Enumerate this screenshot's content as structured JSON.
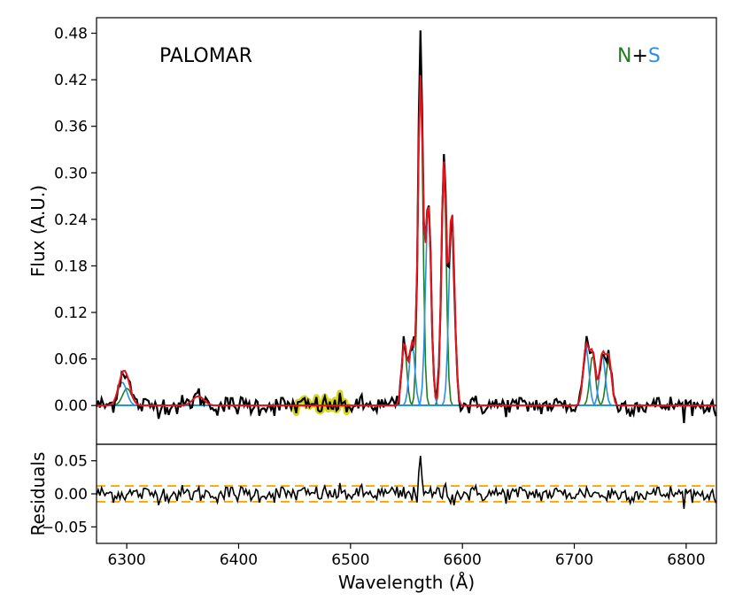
{
  "chart_data": [
    {
      "type": "line",
      "panel": "spectrum",
      "title": "",
      "xlabel": "",
      "ylabel": "Flux (A.U.)",
      "xlim": [
        6273,
        6827
      ],
      "ylim": [
        -0.05,
        0.5
      ],
      "xticks": [
        6300,
        6400,
        6500,
        6600,
        6700,
        6800
      ],
      "yticks": [
        0.0,
        0.06,
        0.12,
        0.18,
        0.24,
        0.3,
        0.36,
        0.42,
        0.48
      ],
      "ytick_labels": [
        "0.00",
        "0.06",
        "0.12",
        "0.18",
        "0.24",
        "0.30",
        "0.36",
        "0.42",
        "0.48"
      ],
      "annotations": {
        "label": "PALOMAR",
        "n_text": "N",
        "plus_text": "+",
        "s_text": "S"
      },
      "components": {
        "north": [
          {
            "center": 6548.0,
            "amp": 0.08,
            "sigma": 2.3
          },
          {
            "center": 6562.5,
            "amp": 0.42,
            "sigma": 2.2
          },
          {
            "center": 6583.4,
            "amp": 0.31,
            "sigma": 2.2
          },
          {
            "center": 6716.4,
            "amp": 0.065,
            "sigma": 2.5
          },
          {
            "center": 6730.8,
            "amp": 0.06,
            "sigma": 2.5
          },
          {
            "center": 6300.3,
            "amp": 0.022,
            "sigma": 4.0
          }
        ],
        "south": [
          {
            "center": 6555.0,
            "amp": 0.08,
            "sigma": 2.5
          },
          {
            "center": 6569.5,
            "amp": 0.26,
            "sigma": 2.5
          },
          {
            "center": 6590.5,
            "amp": 0.25,
            "sigma": 2.5
          },
          {
            "center": 6710.5,
            "amp": 0.075,
            "sigma": 2.6
          },
          {
            "center": 6725.0,
            "amp": 0.065,
            "sigma": 2.6
          },
          {
            "center": 6296.0,
            "amp": 0.03,
            "sigma": 4.0
          },
          {
            "center": 6364.0,
            "amp": 0.012,
            "sigma": 5.0
          }
        ]
      },
      "masked_region": [
        6450,
        6500
      ],
      "series": [],
      "colors": {
        "data": "#000000",
        "model": "#e8141c",
        "north": "#1e7f1e",
        "south": "#2a8fe6",
        "mask": "#d6d61e"
      }
    },
    {
      "type": "line",
      "panel": "residuals",
      "xlabel": "Wavelength (Å)",
      "ylabel": "Residuals",
      "xlim": [
        6273,
        6827
      ],
      "ylim": [
        -0.075,
        0.075
      ],
      "xticks": [
        6300,
        6400,
        6500,
        6600,
        6700,
        6800
      ],
      "yticks": [
        -0.05,
        0.0,
        0.05
      ],
      "ytick_labels": [
        "−0.05",
        "0.00",
        "0.05"
      ],
      "bands": [
        -0.012,
        0.012
      ],
      "colors": {
        "residual": "#000000",
        "band": "#ffa500"
      }
    }
  ]
}
